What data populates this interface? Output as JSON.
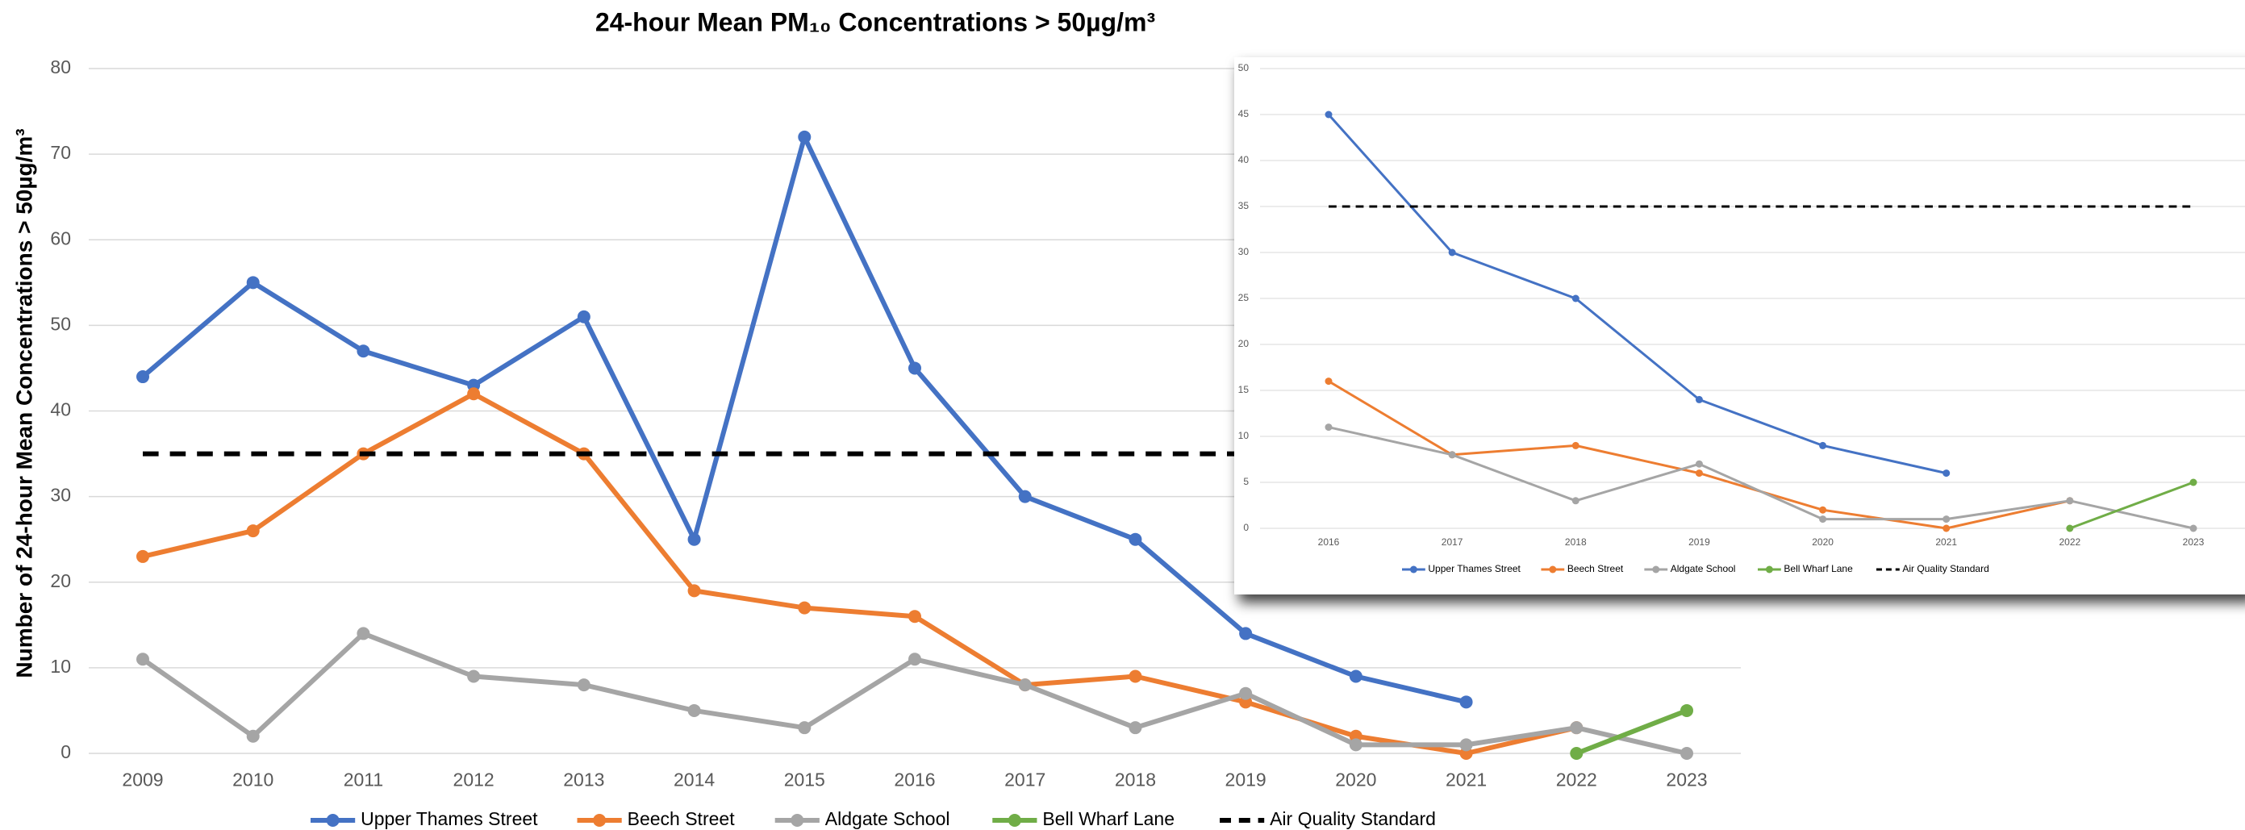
{
  "chart_data": [
    {
      "type": "line",
      "title": "24-hour Mean PM₁₀ Concentrations > 50µg/m³",
      "y_label": "Number of 24-hour Mean Concentrations > 50µg/m³",
      "categories": [
        "2009",
        "2010",
        "2011",
        "2012",
        "2013",
        "2014",
        "2015",
        "2016",
        "2017",
        "2018",
        "2019",
        "2020",
        "2021",
        "2022",
        "2023"
      ],
      "ylim": [
        0,
        80
      ],
      "yticks": [
        0,
        10,
        20,
        30,
        40,
        50,
        60,
        70,
        80
      ],
      "grid": true,
      "legend": "bottom",
      "series": [
        {
          "name": "Upper Thames Street",
          "color": "#4472c4",
          "values": [
            44,
            55,
            47,
            43,
            51,
            25,
            72,
            45,
            30,
            25,
            14,
            9,
            6,
            null,
            null
          ]
        },
        {
          "name": "Beech Street",
          "color": "#ed7d31",
          "values": [
            23,
            26,
            35,
            42,
            35,
            19,
            17,
            16,
            8,
            9,
            6,
            2,
            0,
            3,
            null
          ]
        },
        {
          "name": "Aldgate School",
          "color": "#a5a5a5",
          "values": [
            11,
            2,
            14,
            9,
            8,
            5,
            3,
            11,
            8,
            3,
            7,
            1,
            1,
            3,
            0
          ]
        },
        {
          "name": "Bell Wharf Lane",
          "color": "#70ad47",
          "values": [
            null,
            null,
            null,
            null,
            null,
            null,
            null,
            null,
            null,
            null,
            null,
            null,
            null,
            0,
            5
          ]
        },
        {
          "name": "Air Quality Standard",
          "color": "#000000",
          "dashed": true,
          "values": [
            35,
            35,
            35,
            35,
            35,
            35,
            35,
            35,
            35,
            35,
            35,
            35,
            35,
            35,
            35
          ]
        }
      ]
    },
    {
      "type": "line",
      "categories": [
        "2016",
        "2017",
        "2018",
        "2019",
        "2020",
        "2021",
        "2022",
        "2023"
      ],
      "ylim": [
        0,
        50
      ],
      "yticks": [
        0,
        5,
        10,
        15,
        20,
        25,
        30,
        35,
        40,
        45,
        50
      ],
      "grid": true,
      "legend": "bottom",
      "series": [
        {
          "name": "Upper Thames Street",
          "color": "#4472c4",
          "values": [
            45,
            30,
            25,
            14,
            9,
            6,
            null,
            null
          ]
        },
        {
          "name": "Beech Street",
          "color": "#ed7d31",
          "values": [
            16,
            8,
            9,
            6,
            2,
            0,
            3,
            null
          ]
        },
        {
          "name": "Aldgate School",
          "color": "#a5a5a5",
          "values": [
            11,
            8,
            3,
            7,
            1,
            1,
            3,
            0
          ]
        },
        {
          "name": "Bell Wharf Lane",
          "color": "#70ad47",
          "values": [
            null,
            null,
            null,
            null,
            null,
            null,
            0,
            5
          ]
        },
        {
          "name": "Air Quality Standard",
          "color": "#000000",
          "dashed": true,
          "values": [
            35,
            35,
            35,
            35,
            35,
            35,
            35,
            35
          ]
        }
      ]
    }
  ]
}
